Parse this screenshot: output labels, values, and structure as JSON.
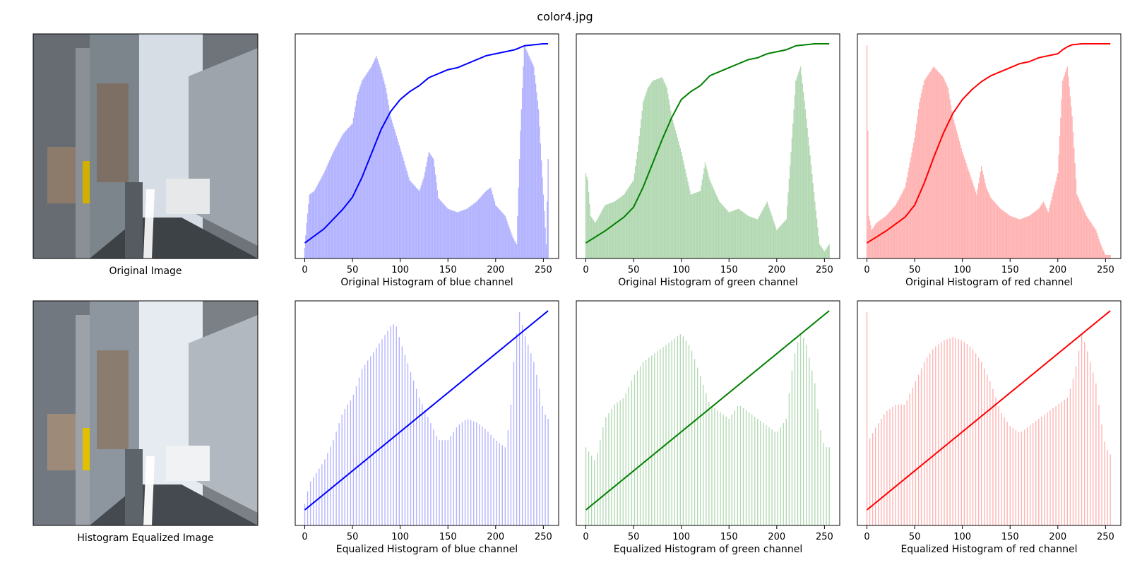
{
  "figure": {
    "title": "color4.jpg"
  },
  "images": [
    {
      "caption": "Original Image"
    },
    {
      "caption": "Histogram Equalized Image"
    }
  ],
  "chart_data": [
    {
      "type": "bar",
      "title": "",
      "xlabel": "Original Histogram of blue channel",
      "ylabel": "",
      "color": "#0000ff",
      "bar_color": "#b2b2ff",
      "xlim": [
        -10,
        266
      ],
      "xticks": [
        0,
        50,
        100,
        150,
        200,
        250
      ],
      "yticks_visible": false,
      "histogram_points": [
        [
          0,
          15
        ],
        [
          2,
          50
        ],
        [
          5,
          90
        ],
        [
          10,
          95
        ],
        [
          20,
          120
        ],
        [
          30,
          150
        ],
        [
          40,
          175
        ],
        [
          50,
          190
        ],
        [
          55,
          230
        ],
        [
          60,
          250
        ],
        [
          70,
          270
        ],
        [
          75,
          285
        ],
        [
          80,
          265
        ],
        [
          85,
          240
        ],
        [
          90,
          200
        ],
        [
          100,
          155
        ],
        [
          110,
          110
        ],
        [
          120,
          95
        ],
        [
          125,
          115
        ],
        [
          130,
          150
        ],
        [
          135,
          140
        ],
        [
          140,
          85
        ],
        [
          150,
          70
        ],
        [
          160,
          65
        ],
        [
          170,
          70
        ],
        [
          180,
          80
        ],
        [
          190,
          95
        ],
        [
          195,
          100
        ],
        [
          200,
          75
        ],
        [
          210,
          60
        ],
        [
          218,
          30
        ],
        [
          222,
          20
        ],
        [
          226,
          180
        ],
        [
          230,
          300
        ],
        [
          235,
          285
        ],
        [
          240,
          270
        ],
        [
          245,
          210
        ],
        [
          250,
          90
        ],
        [
          253,
          20
        ],
        [
          255,
          140
        ]
      ],
      "cdf_points": [
        [
          0,
          0
        ],
        [
          20,
          0.07
        ],
        [
          40,
          0.17
        ],
        [
          50,
          0.23
        ],
        [
          60,
          0.33
        ],
        [
          70,
          0.45
        ],
        [
          80,
          0.57
        ],
        [
          90,
          0.66
        ],
        [
          100,
          0.72
        ],
        [
          110,
          0.76
        ],
        [
          120,
          0.79
        ],
        [
          130,
          0.83
        ],
        [
          140,
          0.85
        ],
        [
          150,
          0.87
        ],
        [
          160,
          0.88
        ],
        [
          170,
          0.9
        ],
        [
          180,
          0.92
        ],
        [
          190,
          0.94
        ],
        [
          200,
          0.95
        ],
        [
          210,
          0.96
        ],
        [
          220,
          0.97
        ],
        [
          225,
          0.98
        ],
        [
          230,
          0.99
        ],
        [
          240,
          0.995
        ],
        [
          250,
          1.0
        ],
        [
          255,
          1.0
        ]
      ]
    },
    {
      "type": "bar",
      "title": "",
      "xlabel": "Original Histogram of green channel",
      "ylabel": "",
      "color": "#008000",
      "bar_color": "#b2d8b2",
      "xlim": [
        -10,
        266
      ],
      "xticks": [
        0,
        50,
        100,
        150,
        200,
        250
      ],
      "yticks_visible": false,
      "histogram_points": [
        [
          0,
          120
        ],
        [
          2,
          110
        ],
        [
          5,
          60
        ],
        [
          10,
          50
        ],
        [
          20,
          75
        ],
        [
          30,
          80
        ],
        [
          40,
          90
        ],
        [
          50,
          110
        ],
        [
          55,
          160
        ],
        [
          60,
          220
        ],
        [
          65,
          240
        ],
        [
          70,
          250
        ],
        [
          80,
          255
        ],
        [
          85,
          240
        ],
        [
          90,
          200
        ],
        [
          100,
          150
        ],
        [
          110,
          90
        ],
        [
          120,
          95
        ],
        [
          125,
          135
        ],
        [
          130,
          110
        ],
        [
          140,
          80
        ],
        [
          150,
          65
        ],
        [
          160,
          70
        ],
        [
          170,
          60
        ],
        [
          180,
          55
        ],
        [
          190,
          80
        ],
        [
          195,
          60
        ],
        [
          200,
          40
        ],
        [
          210,
          55
        ],
        [
          215,
          150
        ],
        [
          220,
          250
        ],
        [
          225,
          270
        ],
        [
          230,
          210
        ],
        [
          240,
          80
        ],
        [
          245,
          20
        ],
        [
          250,
          10
        ],
        [
          255,
          20
        ]
      ],
      "cdf_points": [
        [
          0,
          0
        ],
        [
          20,
          0.06
        ],
        [
          40,
          0.13
        ],
        [
          50,
          0.18
        ],
        [
          60,
          0.28
        ],
        [
          70,
          0.4
        ],
        [
          80,
          0.52
        ],
        [
          90,
          0.63
        ],
        [
          100,
          0.72
        ],
        [
          110,
          0.76
        ],
        [
          120,
          0.79
        ],
        [
          130,
          0.84
        ],
        [
          140,
          0.86
        ],
        [
          150,
          0.88
        ],
        [
          160,
          0.9
        ],
        [
          170,
          0.92
        ],
        [
          180,
          0.93
        ],
        [
          190,
          0.95
        ],
        [
          200,
          0.96
        ],
        [
          210,
          0.97
        ],
        [
          215,
          0.98
        ],
        [
          220,
          0.99
        ],
        [
          230,
          0.995
        ],
        [
          240,
          1.0
        ],
        [
          255,
          1.0
        ]
      ]
    },
    {
      "type": "bar",
      "title": "",
      "xlabel": "Original Histogram of red channel",
      "ylabel": "",
      "color": "#ff0000",
      "bar_color": "#ffb2b2",
      "xlim": [
        -10,
        266
      ],
      "xticks": [
        0,
        50,
        100,
        150,
        200,
        250
      ],
      "yticks_visible": false,
      "histogram_points": [
        [
          0,
          300
        ],
        [
          2,
          60
        ],
        [
          5,
          40
        ],
        [
          10,
          50
        ],
        [
          20,
          60
        ],
        [
          30,
          75
        ],
        [
          40,
          100
        ],
        [
          50,
          170
        ],
        [
          55,
          220
        ],
        [
          60,
          250
        ],
        [
          65,
          260
        ],
        [
          70,
          270
        ],
        [
          80,
          255
        ],
        [
          85,
          240
        ],
        [
          90,
          200
        ],
        [
          100,
          150
        ],
        [
          110,
          110
        ],
        [
          115,
          90
        ],
        [
          120,
          130
        ],
        [
          125,
          100
        ],
        [
          130,
          85
        ],
        [
          140,
          70
        ],
        [
          150,
          60
        ],
        [
          160,
          55
        ],
        [
          170,
          60
        ],
        [
          180,
          70
        ],
        [
          185,
          80
        ],
        [
          190,
          65
        ],
        [
          200,
          120
        ],
        [
          205,
          250
        ],
        [
          210,
          270
        ],
        [
          215,
          200
        ],
        [
          220,
          90
        ],
        [
          230,
          60
        ],
        [
          240,
          40
        ],
        [
          245,
          20
        ],
        [
          250,
          5
        ],
        [
          255,
          5
        ]
      ],
      "cdf_points": [
        [
          0,
          0
        ],
        [
          20,
          0.06
        ],
        [
          40,
          0.13
        ],
        [
          50,
          0.19
        ],
        [
          60,
          0.3
        ],
        [
          70,
          0.43
        ],
        [
          80,
          0.55
        ],
        [
          90,
          0.65
        ],
        [
          100,
          0.72
        ],
        [
          110,
          0.77
        ],
        [
          120,
          0.81
        ],
        [
          130,
          0.84
        ],
        [
          140,
          0.86
        ],
        [
          150,
          0.88
        ],
        [
          160,
          0.9
        ],
        [
          170,
          0.91
        ],
        [
          180,
          0.93
        ],
        [
          190,
          0.94
        ],
        [
          200,
          0.95
        ],
        [
          205,
          0.97
        ],
        [
          210,
          0.985
        ],
        [
          215,
          0.995
        ],
        [
          225,
          1.0
        ],
        [
          255,
          1.0
        ]
      ]
    },
    {
      "type": "bar",
      "title": "",
      "xlabel": "Equalized Histogram of blue channel",
      "ylabel": "",
      "color": "#0000ff",
      "bar_color": "#b2b2ff",
      "xlim": [
        -10,
        266
      ],
      "xticks": [
        0,
        50,
        100,
        150,
        200,
        250
      ],
      "yticks_visible": false,
      "histogram_points": [
        [
          0,
          30
        ],
        [
          5,
          60
        ],
        [
          10,
          70
        ],
        [
          20,
          90
        ],
        [
          30,
          120
        ],
        [
          40,
          160
        ],
        [
          50,
          180
        ],
        [
          60,
          220
        ],
        [
          70,
          240
        ],
        [
          80,
          260
        ],
        [
          90,
          280
        ],
        [
          95,
          285
        ],
        [
          100,
          260
        ],
        [
          110,
          220
        ],
        [
          120,
          180
        ],
        [
          130,
          150
        ],
        [
          135,
          135
        ],
        [
          140,
          120
        ],
        [
          150,
          120
        ],
        [
          160,
          140
        ],
        [
          170,
          150
        ],
        [
          180,
          145
        ],
        [
          190,
          135
        ],
        [
          200,
          120
        ],
        [
          210,
          110
        ],
        [
          215,
          150
        ],
        [
          220,
          250
        ],
        [
          225,
          300
        ],
        [
          230,
          270
        ],
        [
          240,
          230
        ],
        [
          245,
          200
        ],
        [
          250,
          160
        ],
        [
          255,
          150
        ]
      ],
      "cdf_points": [
        [
          0,
          0
        ],
        [
          255,
          1.0
        ]
      ]
    },
    {
      "type": "bar",
      "title": "",
      "xlabel": "Equalized Histogram of green channel",
      "ylabel": "",
      "color": "#008000",
      "bar_color": "#b2d8b2",
      "xlim": [
        -10,
        266
      ],
      "xticks": [
        0,
        50,
        100,
        150,
        200,
        250
      ],
      "yticks_visible": false,
      "histogram_points": [
        [
          0,
          110
        ],
        [
          5,
          100
        ],
        [
          10,
          90
        ],
        [
          20,
          150
        ],
        [
          30,
          170
        ],
        [
          40,
          180
        ],
        [
          50,
          210
        ],
        [
          60,
          230
        ],
        [
          70,
          240
        ],
        [
          80,
          250
        ],
        [
          90,
          260
        ],
        [
          100,
          270
        ],
        [
          110,
          250
        ],
        [
          120,
          210
        ],
        [
          130,
          170
        ],
        [
          140,
          160
        ],
        [
          150,
          150
        ],
        [
          160,
          170
        ],
        [
          170,
          160
        ],
        [
          180,
          150
        ],
        [
          190,
          140
        ],
        [
          200,
          130
        ],
        [
          210,
          150
        ],
        [
          215,
          210
        ],
        [
          220,
          250
        ],
        [
          225,
          270
        ],
        [
          230,
          260
        ],
        [
          240,
          200
        ],
        [
          245,
          140
        ],
        [
          250,
          110
        ],
        [
          255,
          110
        ]
      ],
      "cdf_points": [
        [
          0,
          0
        ],
        [
          255,
          1.0
        ]
      ]
    },
    {
      "type": "bar",
      "title": "",
      "xlabel": "Equalized Histogram of red channel",
      "ylabel": "",
      "color": "#ff0000",
      "bar_color": "#ffb2b2",
      "xlim": [
        -10,
        266
      ],
      "xticks": [
        0,
        50,
        100,
        150,
        200,
        250
      ],
      "yticks_visible": false,
      "histogram_points": [
        [
          0,
          300
        ],
        [
          2,
          120
        ],
        [
          10,
          140
        ],
        [
          20,
          160
        ],
        [
          30,
          170
        ],
        [
          40,
          170
        ],
        [
          50,
          200
        ],
        [
          60,
          230
        ],
        [
          70,
          250
        ],
        [
          80,
          260
        ],
        [
          90,
          265
        ],
        [
          100,
          260
        ],
        [
          110,
          250
        ],
        [
          120,
          230
        ],
        [
          130,
          200
        ],
        [
          140,
          160
        ],
        [
          150,
          140
        ],
        [
          160,
          130
        ],
        [
          170,
          140
        ],
        [
          180,
          150
        ],
        [
          190,
          160
        ],
        [
          200,
          170
        ],
        [
          210,
          180
        ],
        [
          215,
          200
        ],
        [
          220,
          230
        ],
        [
          225,
          270
        ],
        [
          230,
          250
        ],
        [
          240,
          200
        ],
        [
          245,
          150
        ],
        [
          250,
          110
        ],
        [
          255,
          100
        ]
      ],
      "cdf_points": [
        [
          0,
          0
        ],
        [
          255,
          1.0
        ]
      ]
    }
  ]
}
